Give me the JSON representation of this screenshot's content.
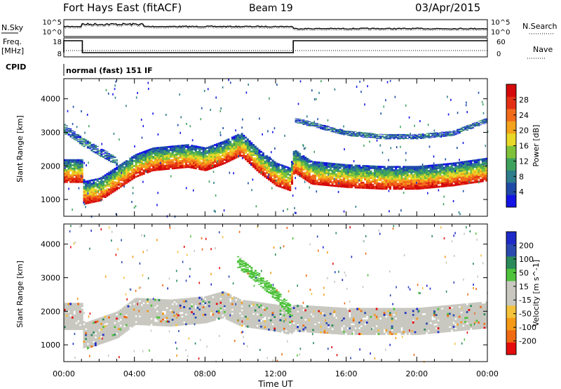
{
  "header": {
    "station": "Fort Hays East (fitACF)",
    "beam": "Beam 19",
    "date": "03/Apr/2015"
  },
  "top_panels": {
    "nsky_label": "N.Sky",
    "nsky_ticks": [
      "10^5",
      "10^0"
    ],
    "nsearch_label": "N.Search",
    "nsearch_ticks": [
      "10^5",
      "10^0"
    ],
    "freq_label": "Freq.",
    "freq_unit": "[MHz]",
    "freq_ticks": [
      "18",
      "8"
    ],
    "nave_label": "Nave",
    "nave_ticks": [
      "60",
      "0"
    ],
    "cpid_label": "CPID",
    "cpid_text": "normal (fast) 151 IF"
  },
  "colors": {
    "power": [
      "#1414e6",
      "#1f4aa8",
      "#2e7d8c",
      "#3fa25c",
      "#7fc23a",
      "#e8d828",
      "#f4a21c",
      "#f26b1b",
      "#e33014",
      "#d40a0a"
    ],
    "velocity": [
      "#e40c0c",
      "#f06a12",
      "#f59a16",
      "#f3c23a",
      "#c8c8c0",
      "#c8c8c0",
      "#4fc23c",
      "#2a8a5a",
      "#2a4ab0",
      "#1e2ac8"
    ]
  },
  "chart_data": [
    {
      "type": "heatmap",
      "title": "Power",
      "ylabel": "Slant Range [km]",
      "y_ticks": [
        "1000",
        "2000",
        "3000",
        "4000"
      ],
      "ylim": [
        500,
        4600
      ],
      "x_ticks": [
        "00:00",
        "04:00",
        "08:00",
        "12:00",
        "16:00",
        "20:00",
        "00:00"
      ],
      "colorbar_label": "Power [dB]",
      "colorbar_ticks": [
        "4",
        "8",
        "12",
        "16",
        "20",
        "24",
        "28"
      ],
      "colorbar_range": [
        0,
        32
      ],
      "bands": [
        {
          "name": "main",
          "edge_km": [
            [
              0,
              1500
            ],
            [
              1,
              1500
            ],
            [
              1.1,
              850
            ],
            [
              2,
              950
            ],
            [
              3,
              1300
            ],
            [
              4,
              1650
            ],
            [
              5,
              1850
            ],
            [
              6,
              1900
            ],
            [
              7,
              1950
            ],
            [
              8,
              1850
            ],
            [
              9,
              2050
            ],
            [
              10,
              2300
            ],
            [
              11,
              1800
            ],
            [
              12,
              1400
            ],
            [
              12.8,
              1250
            ],
            [
              13,
              1800
            ],
            [
              14,
              1450
            ],
            [
              16,
              1350
            ],
            [
              18,
              1300
            ],
            [
              20,
              1300
            ],
            [
              22,
              1400
            ],
            [
              24,
              1550
            ]
          ],
          "depth_km": 700
        },
        {
          "name": "upper-east",
          "edge_km": [
            [
              13,
              3300
            ],
            [
              16,
              2900
            ],
            [
              18,
              2800
            ],
            [
              20,
              2800
            ],
            [
              22,
              2900
            ],
            [
              24,
              3300
            ]
          ],
          "depth_km": 150
        },
        {
          "name": "morning",
          "edge_km": [
            [
              0,
              3000
            ],
            [
              1,
              2600
            ],
            [
              2,
              2300
            ],
            [
              3,
              2000
            ]
          ],
          "depth_km": 250
        }
      ]
    },
    {
      "type": "heatmap",
      "title": "Velocity",
      "ylabel": "Slant Range [km]",
      "y_ticks": [
        "1000",
        "2000",
        "3000",
        "4000"
      ],
      "ylim": [
        500,
        4600
      ],
      "x_ticks": [
        "00:00",
        "04:00",
        "08:00",
        "12:00",
        "16:00",
        "20:00",
        "00:00"
      ],
      "xlabel": "Time UT",
      "colorbar_label": "Velocity [m s^-1]",
      "colorbar_ticks": [
        "-200",
        "-100",
        "-50",
        "-15",
        "15",
        "50",
        "100",
        "200"
      ],
      "colorbar_range": [
        -250,
        250
      ],
      "bands": [
        {
          "name": "ground-scatter",
          "edge_km": [
            [
              0,
              1450
            ],
            [
              1,
              1450
            ],
            [
              1.1,
              850
            ],
            [
              3,
              1200
            ],
            [
              4,
              1600
            ],
            [
              6,
              1550
            ],
            [
              8,
              1650
            ],
            [
              9,
              1800
            ],
            [
              10,
              1550
            ],
            [
              12,
              1400
            ],
            [
              12.8,
              1300
            ],
            [
              13,
              1400
            ],
            [
              16,
              1300
            ],
            [
              20,
              1300
            ],
            [
              24,
              1500
            ]
          ],
          "depth_km": 800
        },
        {
          "name": "positive-streak",
          "edge_km": [
            [
              9.8,
              3300
            ],
            [
              11,
              2800
            ],
            [
              12,
              2300
            ],
            [
              12.8,
              1850
            ]
          ],
          "depth_km": 350
        }
      ]
    }
  ]
}
